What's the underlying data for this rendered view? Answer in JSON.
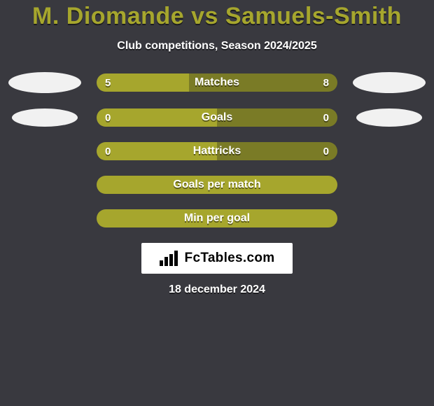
{
  "background_color": "#39393f",
  "title": {
    "text": "M. Diomande vs Samuels-Smith",
    "color": "#a6a62d",
    "fontsize": 34
  },
  "subtitle": {
    "text": "Club competitions, Season 2024/2025",
    "fontsize": 16
  },
  "bars": [
    {
      "label": "Matches",
      "left_value": "5",
      "right_value": "8",
      "left_pct": 38.5,
      "right_pct": 61.5,
      "left_color": "#a6a62d",
      "right_color": "#7a7b26",
      "show_blob": true,
      "blob_size": "large"
    },
    {
      "label": "Goals",
      "left_value": "0",
      "right_value": "0",
      "left_pct": 50,
      "right_pct": 50,
      "left_color": "#a6a62d",
      "right_color": "#7a7b26",
      "show_blob": true,
      "blob_size": "small"
    },
    {
      "label": "Hattricks",
      "left_value": "0",
      "right_value": "0",
      "left_pct": 50,
      "right_pct": 50,
      "left_color": "#a6a62d",
      "right_color": "#7a7b26",
      "show_blob": false
    },
    {
      "label": "Goals per match",
      "left_value": "",
      "right_value": "",
      "left_pct": 100,
      "right_pct": 0,
      "left_color": "#a6a62d",
      "right_color": "#7a7b26",
      "show_blob": false
    },
    {
      "label": "Min per goal",
      "left_value": "",
      "right_value": "",
      "left_pct": 100,
      "right_pct": 0,
      "left_color": "#a6a62d",
      "right_color": "#7a7b26",
      "show_blob": false
    }
  ],
  "branding": {
    "text": "FcTables.com",
    "bar_color": "#000000",
    "bg": "#ffffff"
  },
  "date": "18 december 2024"
}
